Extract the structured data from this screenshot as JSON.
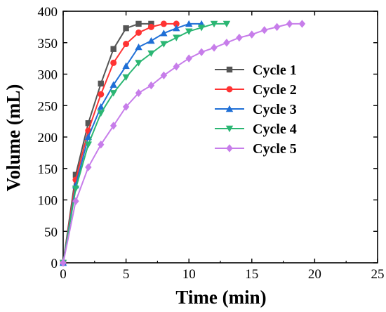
{
  "chart_data": {
    "type": "line",
    "xlabel": "Time (min)",
    "ylabel": "Volume (mL)",
    "xlim": [
      0,
      25
    ],
    "ylim": [
      0,
      400
    ],
    "xticks": [
      "0",
      "5",
      "10",
      "15",
      "20",
      "25"
    ],
    "yticks": [
      "0",
      "50",
      "100",
      "150",
      "200",
      "250",
      "300",
      "350",
      "400"
    ],
    "grid": false,
    "legend_position": "right",
    "series": [
      {
        "name": "Cycle 1",
        "color": "#555555",
        "marker": "square",
        "x": [
          0,
          1,
          2,
          3,
          4,
          5,
          6,
          7
        ],
        "y": [
          0,
          140,
          222,
          285,
          340,
          373,
          380,
          380
        ]
      },
      {
        "name": "Cycle 2",
        "color": "#ff3333",
        "marker": "circle",
        "x": [
          0,
          1,
          2,
          3,
          4,
          5,
          6,
          7,
          8,
          9
        ],
        "y": [
          0,
          132,
          210,
          268,
          318,
          348,
          366,
          375,
          380,
          380
        ]
      },
      {
        "name": "Cycle 3",
        "color": "#1f6fd6",
        "marker": "triangle-up",
        "x": [
          0,
          1,
          2,
          3,
          4,
          5,
          6,
          7,
          8,
          9,
          10,
          11
        ],
        "y": [
          0,
          123,
          200,
          248,
          283,
          313,
          343,
          353,
          365,
          373,
          380,
          380
        ]
      },
      {
        "name": "Cycle 4",
        "color": "#2bb673",
        "marker": "triangle-down",
        "x": [
          0,
          1,
          2,
          3,
          4,
          5,
          6,
          7,
          8,
          9,
          10,
          11,
          12,
          13
        ],
        "y": [
          0,
          118,
          188,
          238,
          270,
          295,
          318,
          333,
          348,
          358,
          368,
          374,
          380,
          380
        ]
      },
      {
        "name": "Cycle 5",
        "color": "#c77dea",
        "marker": "diamond",
        "x": [
          0,
          1,
          2,
          3,
          4,
          5,
          6,
          7,
          8,
          9,
          10,
          11,
          12,
          13,
          14,
          15,
          16,
          17,
          18,
          19
        ],
        "y": [
          0,
          98,
          152,
          188,
          218,
          248,
          270,
          282,
          298,
          312,
          325,
          335,
          342,
          350,
          358,
          363,
          370,
          375,
          380,
          380
        ]
      }
    ]
  }
}
